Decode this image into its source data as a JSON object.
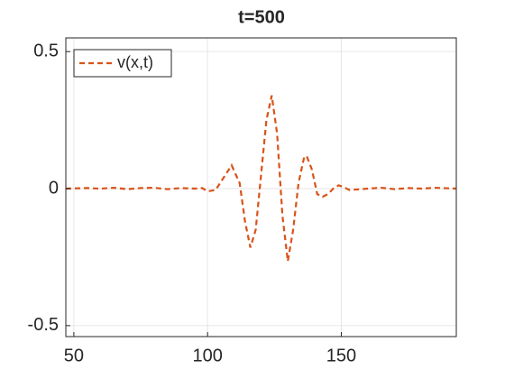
{
  "chart_data": {
    "type": "line",
    "title": "t=500",
    "x": [
      47,
      55,
      60,
      65,
      70,
      75,
      80,
      85,
      90,
      95,
      98,
      100,
      103,
      106,
      109,
      112,
      114,
      116,
      118,
      120,
      122,
      124,
      126,
      128,
      130,
      132,
      134,
      136,
      137,
      139,
      141,
      143,
      145,
      147,
      149,
      151,
      153,
      156,
      160,
      165,
      170,
      175,
      180,
      185,
      193
    ],
    "series": [
      {
        "name": "v(x,t)",
        "color": "#d95319",
        "values": [
          0,
          0.002,
          0,
          0.003,
          -0.002,
          0.002,
          0.003,
          -0.002,
          0.002,
          0,
          0.002,
          -0.01,
          -0.005,
          0.04,
          0.085,
          0.02,
          -0.12,
          -0.215,
          -0.15,
          0.05,
          0.25,
          0.34,
          0.2,
          -0.1,
          -0.265,
          -0.15,
          0.02,
          0.11,
          0.12,
          0.07,
          -0.02,
          -0.03,
          -0.02,
          0,
          0.012,
          0.005,
          -0.005,
          -0.003,
          0,
          0.003,
          -0.002,
          0.002,
          0,
          0.003,
          0
        ]
      }
    ],
    "xlim": [
      47,
      193
    ],
    "ylim": [
      -0.54,
      0.55
    ],
    "xticks": [
      50,
      100,
      150
    ],
    "yticks": [
      -0.5,
      0,
      0.5
    ],
    "grid": true,
    "legend": "top-left",
    "line_style": "dashed"
  }
}
